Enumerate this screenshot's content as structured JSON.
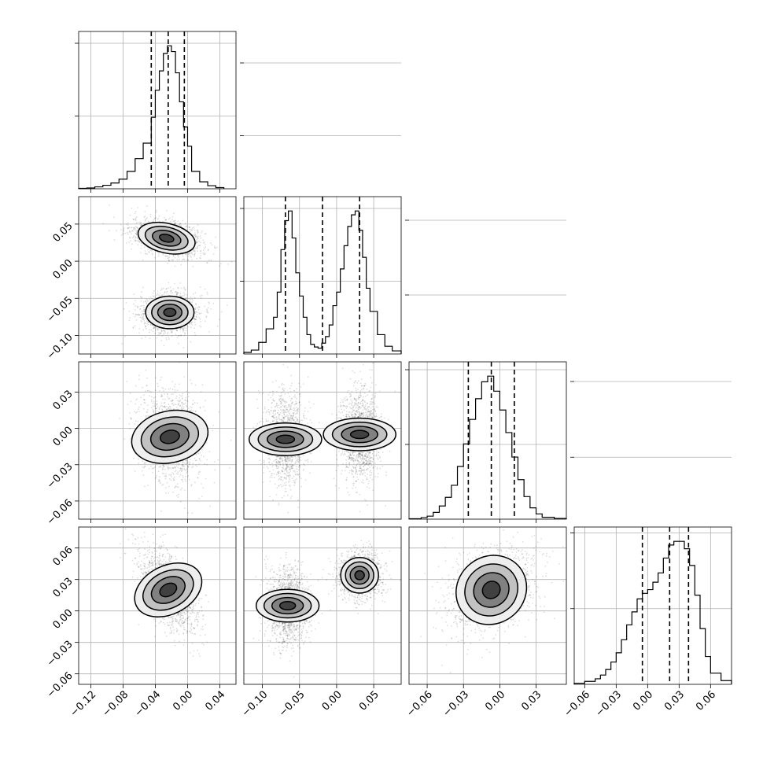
{
  "chart_data": {
    "type": "corner",
    "grid": true,
    "params": [
      {
        "index": 0,
        "range": [
          -0.135,
          0.06
        ],
        "ticks": [
          -0.12,
          -0.08,
          -0.04,
          0.0,
          0.04
        ],
        "tick_labels": [
          "−0.12",
          "−0.08",
          "−0.04",
          "0.00",
          "0.04"
        ],
        "quantiles": [
          -0.045,
          -0.024,
          -0.004
        ],
        "hist": {
          "bins": [
            -0.135,
            -0.125,
            -0.115,
            -0.105,
            -0.095,
            -0.085,
            -0.075,
            -0.065,
            -0.055,
            -0.045,
            -0.04,
            -0.035,
            -0.03,
            -0.025,
            -0.02,
            -0.015,
            -0.01,
            -0.005,
            0.0,
            0.005,
            0.015,
            0.025,
            0.035,
            0.045
          ],
          "counts": [
            1,
            2,
            5,
            9,
            15,
            25,
            45,
            78,
            118,
            185,
            255,
            305,
            350,
            370,
            355,
            300,
            225,
            160,
            110,
            45,
            18,
            8,
            3
          ]
        }
      },
      {
        "index": 1,
        "range": [
          -0.125,
          0.087
        ],
        "ticks": [
          -0.1,
          -0.05,
          0.0,
          0.05
        ],
        "tick_labels": [
          "−0.10",
          "−0.05",
          "0.00",
          "0.05"
        ],
        "quantiles": [
          -0.069,
          -0.019,
          0.031
        ],
        "hist": {
          "bins": [
            -0.125,
            -0.115,
            -0.105,
            -0.095,
            -0.085,
            -0.08,
            -0.075,
            -0.07,
            -0.065,
            -0.06,
            -0.055,
            -0.05,
            -0.045,
            -0.04,
            -0.035,
            -0.03,
            -0.025,
            -0.02,
            -0.015,
            -0.01,
            -0.005,
            0.0,
            0.005,
            0.01,
            0.015,
            0.02,
            0.025,
            0.03,
            0.035,
            0.04,
            0.045,
            0.055,
            0.065,
            0.075,
            0.087
          ],
          "counts": [
            4,
            10,
            30,
            65,
            95,
            160,
            270,
            345,
            370,
            300,
            210,
            150,
            95,
            50,
            25,
            18,
            15,
            28,
            45,
            75,
            125,
            160,
            220,
            280,
            330,
            360,
            370,
            320,
            250,
            170,
            110,
            50,
            20,
            8
          ]
        }
      },
      {
        "index": 2,
        "range": [
          -0.075,
          0.055
        ],
        "ticks": [
          -0.06,
          -0.03,
          0.0,
          0.03
        ],
        "tick_labels": [
          "−0.06",
          "−0.03",
          "0.00",
          "0.03"
        ],
        "quantiles": [
          -0.026,
          -0.007,
          0.012
        ],
        "hist": {
          "bins": [
            -0.075,
            -0.065,
            -0.06,
            -0.055,
            -0.05,
            -0.045,
            -0.04,
            -0.035,
            -0.03,
            -0.025,
            -0.02,
            -0.015,
            -0.01,
            -0.005,
            0.0,
            0.005,
            0.01,
            0.015,
            0.02,
            0.025,
            0.03,
            0.035,
            0.045,
            0.055
          ],
          "counts": [
            1,
            4,
            8,
            18,
            35,
            58,
            90,
            140,
            200,
            265,
            320,
            365,
            380,
            340,
            290,
            230,
            165,
            105,
            60,
            30,
            14,
            5,
            2
          ]
        }
      },
      {
        "index": 3,
        "range": [
          -0.07,
          0.08
        ],
        "ticks": [
          -0.06,
          -0.03,
          0.0,
          0.03,
          0.06
        ],
        "tick_labels": [
          "−0.06",
          "−0.03",
          "0.00",
          "0.03",
          "0.06"
        ],
        "quantiles": [
          -0.005,
          0.021,
          0.039
        ],
        "hist": {
          "bins": [
            -0.07,
            -0.06,
            -0.05,
            -0.045,
            -0.04,
            -0.035,
            -0.03,
            -0.025,
            -0.02,
            -0.015,
            -0.01,
            -0.005,
            0.0,
            0.005,
            0.01,
            0.015,
            0.02,
            0.025,
            0.03,
            0.035,
            0.04,
            0.045,
            0.05,
            0.055,
            0.06,
            0.07,
            0.08
          ],
          "counts": [
            3,
            8,
            15,
            25,
            40,
            60,
            85,
            120,
            160,
            195,
            230,
            245,
            255,
            275,
            300,
            340,
            375,
            385,
            385,
            365,
            320,
            240,
            150,
            75,
            30,
            10
          ]
        }
      }
    ],
    "pairs": [
      {
        "x": 0,
        "y": 1,
        "clusters": [
          {
            "cx": -0.026,
            "cy": 0.031,
            "sx": 0.018,
            "sy": 0.01,
            "rho": -0.35
          },
          {
            "cx": -0.022,
            "cy": -0.069,
            "sx": 0.015,
            "sy": 0.011,
            "rho": 0.0
          }
        ]
      },
      {
        "x": 0,
        "y": 2,
        "clusters": [
          {
            "cx": -0.022,
            "cy": -0.007,
            "sx": 0.016,
            "sy": 0.016,
            "rho": -0.2
          }
        ]
      },
      {
        "x": 1,
        "y": 2,
        "clusters": [
          {
            "cx": -0.069,
            "cy": -0.009,
            "sx": 0.011,
            "sy": 0.015,
            "rho": 0.0
          },
          {
            "cx": 0.031,
            "cy": -0.005,
            "sx": 0.011,
            "sy": 0.015,
            "rho": 0.0
          }
        ]
      },
      {
        "x": 0,
        "y": 3,
        "clusters": [
          {
            "cx": -0.024,
            "cy": 0.02,
            "sx": 0.015,
            "sy": 0.017,
            "rho": -0.55
          }
        ]
      },
      {
        "x": 1,
        "y": 3,
        "clusters": [
          {
            "cx": -0.066,
            "cy": 0.005,
            "sx": 0.011,
            "sy": 0.015,
            "rho": 0.0
          },
          {
            "cx": 0.031,
            "cy": 0.034,
            "sx": 0.012,
            "sy": 0.009,
            "rho": 0.0
          }
        ]
      },
      {
        "x": 2,
        "y": 3,
        "clusters": [
          {
            "cx": -0.007,
            "cy": 0.02,
            "sx": 0.015,
            "sy": 0.016,
            "rho": 0.3
          }
        ]
      }
    ]
  }
}
